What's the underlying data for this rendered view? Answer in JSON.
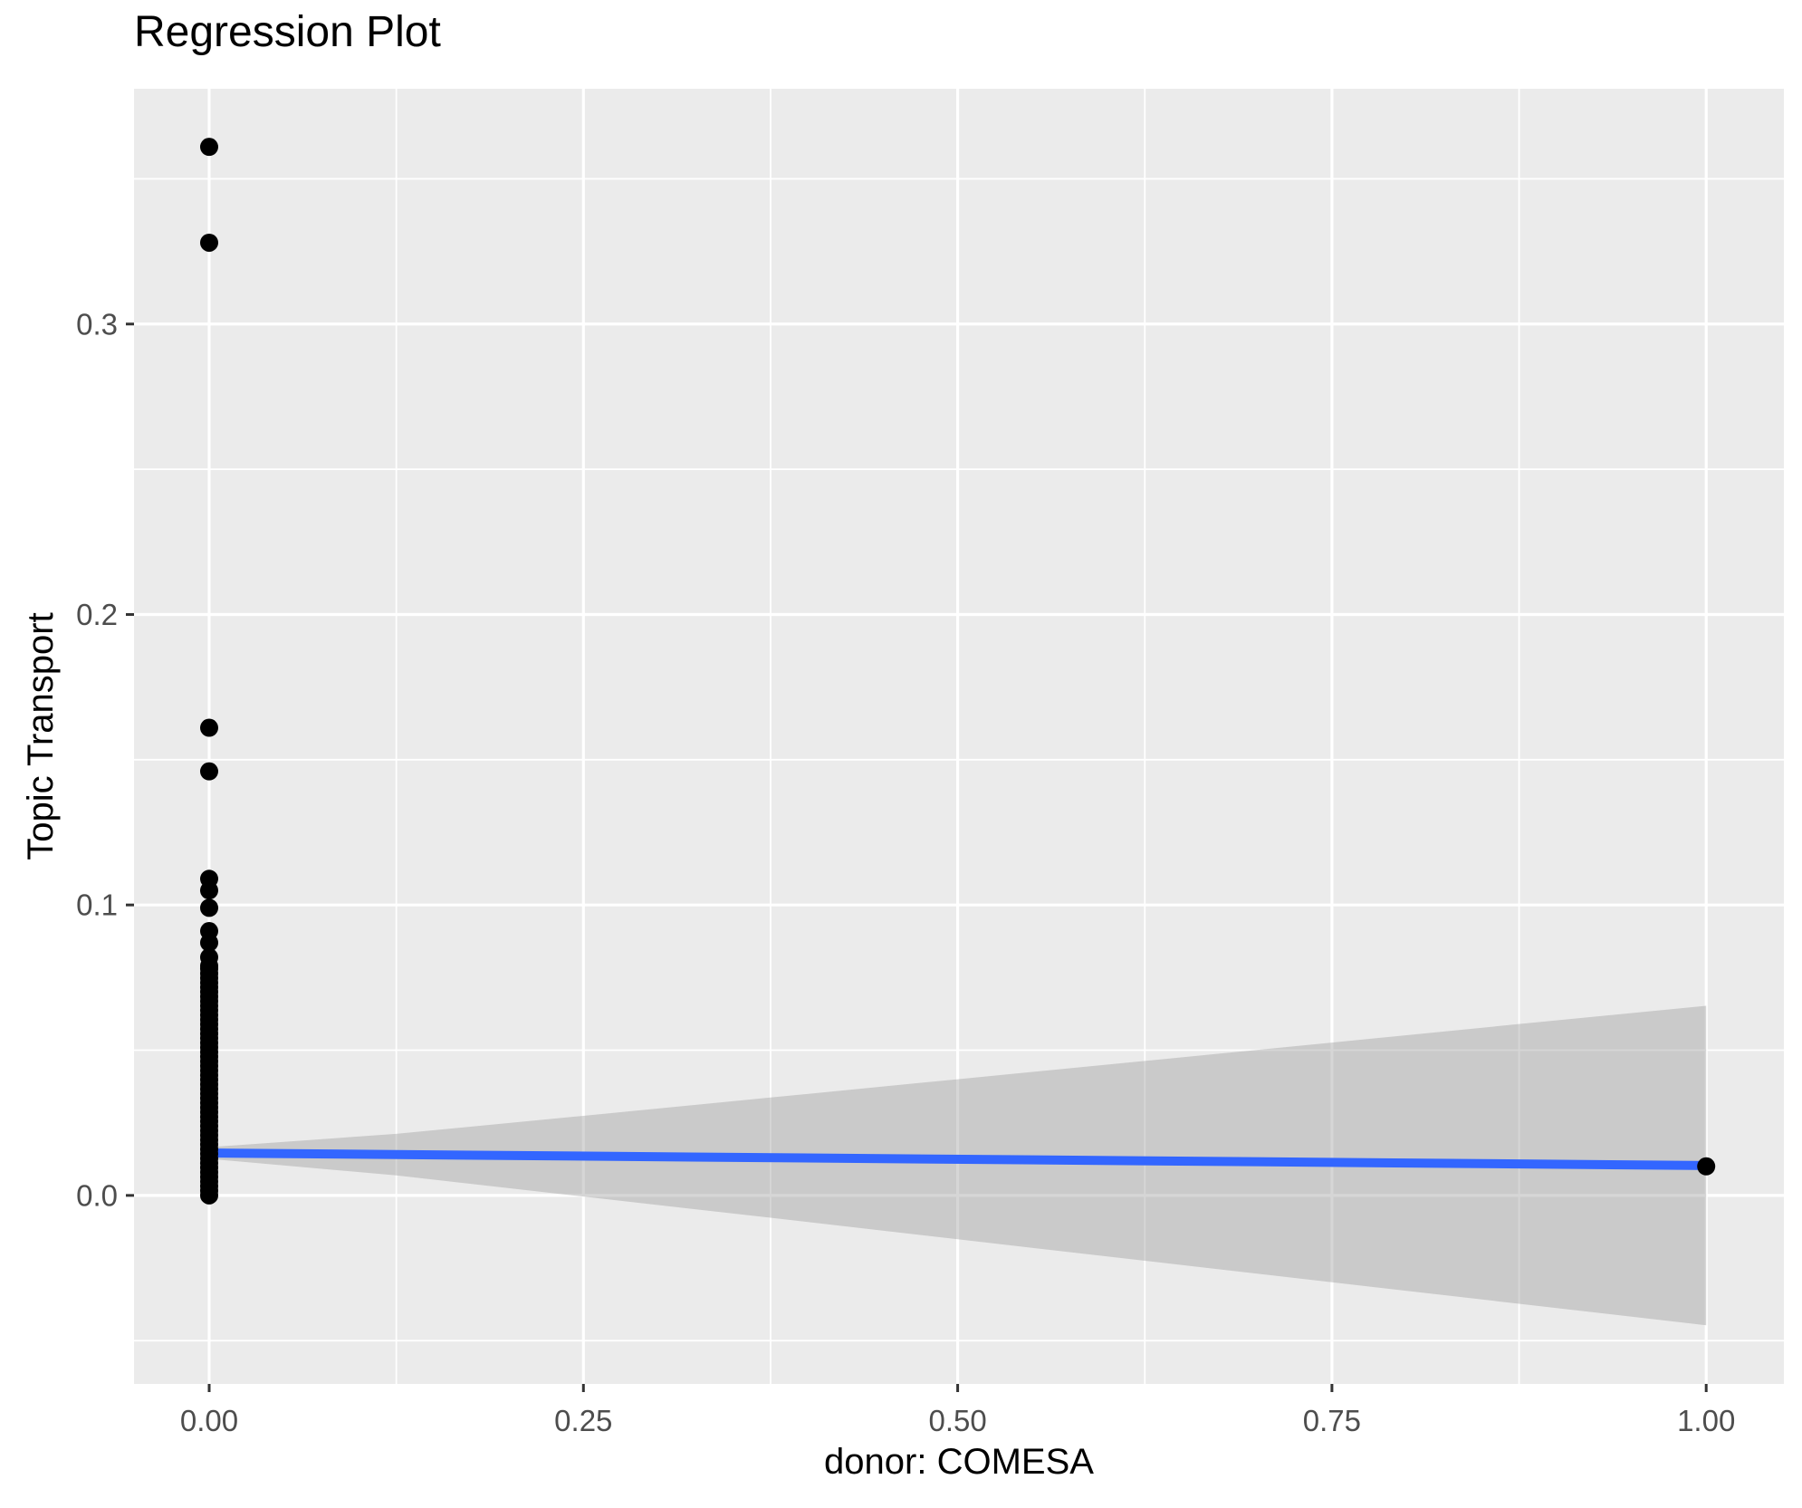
{
  "chart_data": {
    "type": "scatter",
    "title": "Regression Plot",
    "xlabel": "donor: COMESA",
    "ylabel": "Topic Transport",
    "x_domain": [
      -0.0502,
      1.0519
    ],
    "y_domain": [
      -0.0649,
      0.381
    ],
    "x_ticks": {
      "values": [
        0,
        0.25,
        0.5,
        0.75,
        1.0
      ],
      "labels": [
        "0.00",
        "0.25",
        "0.50",
        "0.75",
        "1.00"
      ],
      "minor": [
        0.125,
        0.375,
        0.625,
        0.875
      ]
    },
    "y_ticks": {
      "values": [
        0,
        0.1,
        0.2,
        0.3
      ],
      "labels": [
        "0.0",
        "0.1",
        "0.2",
        "0.3"
      ],
      "minor": [
        -0.05,
        0.05,
        0.15,
        0.25,
        0.35
      ]
    },
    "points_at_x0": {
      "x": 0,
      "isolated_y": [
        0.361,
        0.328,
        0.161,
        0.146,
        0.109,
        0.105,
        0.099,
        0.091,
        0.087,
        0.082,
        0.079
      ],
      "dense_strip": {
        "y_min": 0.0,
        "y_max": 0.078,
        "count": 50
      }
    },
    "point_at_x1": {
      "x": 1.0,
      "y": 0.01
    },
    "regression_line": {
      "x": [
        0,
        1
      ],
      "y": [
        0.0146,
        0.0103
      ]
    },
    "ribbon": {
      "x": [
        0,
        0.125,
        0.25,
        0.375,
        0.5,
        0.625,
        0.75,
        0.875,
        1.0
      ],
      "upper": [
        0.0166,
        0.0212,
        0.0274,
        0.0337,
        0.04,
        0.0463,
        0.0526,
        0.059,
        0.0653
      ],
      "lower": [
        0.0126,
        0.0069,
        -0.0004,
        -0.0077,
        -0.0151,
        -0.0225,
        -0.0299,
        -0.0373,
        -0.0447
      ]
    },
    "legend": "none",
    "grid": "on",
    "colors": {
      "panel_background": "#EBEBEB",
      "grid": "#FFFFFF",
      "points": "#000000",
      "line": "#3366FF",
      "ribbon": "#999999",
      "ribbon_opacity": 0.4,
      "axis_tick": "#333333",
      "tick_label": "#4D4D4D",
      "text": "#000000"
    }
  }
}
